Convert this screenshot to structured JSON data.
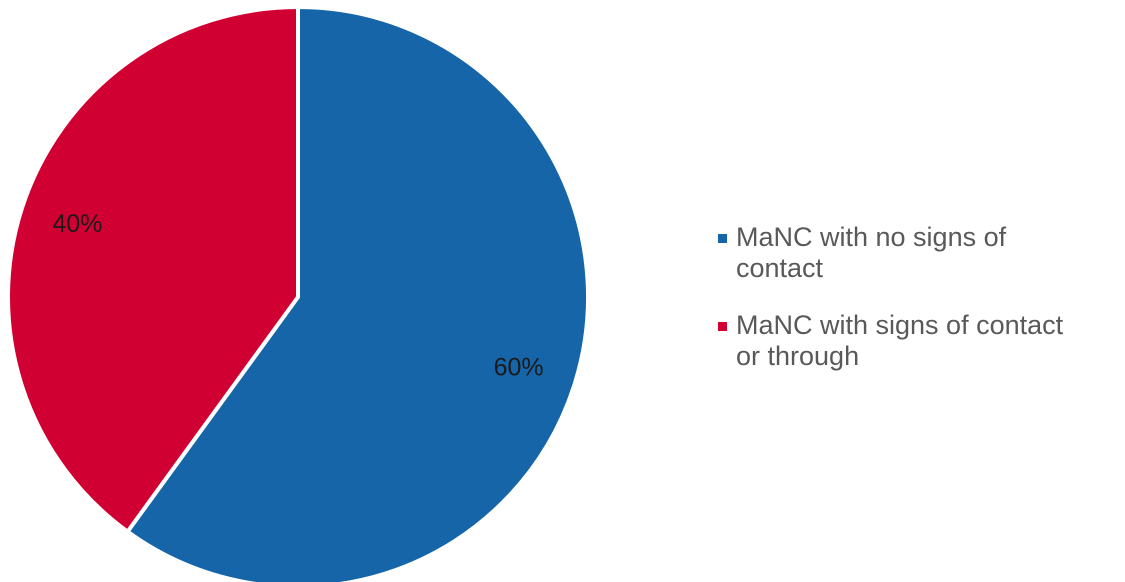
{
  "chart_data": {
    "type": "pie",
    "title": "",
    "slices": [
      {
        "label": "MaNC with no signs of contact",
        "value": 60,
        "display": "60%",
        "color": "#1565a8"
      },
      {
        "label": "MaNC with signs of contact or through",
        "value": 40,
        "display": "40%",
        "color": "#d10032"
      }
    ],
    "legend": {
      "placement": "right",
      "entries": [
        {
          "lines": [
            "MaNC with no signs of",
            "contact"
          ],
          "color": "#1565a8"
        },
        {
          "lines": [
            "MaNC with signs of contact",
            "or through"
          ],
          "color": "#d10032"
        }
      ]
    }
  }
}
